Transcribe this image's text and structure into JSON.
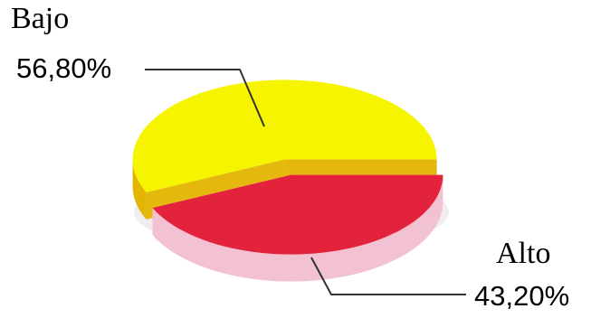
{
  "chart_data": {
    "type": "pie",
    "title": "",
    "slices": [
      {
        "label": "Bajo",
        "value": 56.8,
        "display": "56,80%",
        "color": "#f7f400",
        "side_color": "#e3b400"
      },
      {
        "label": "Alto",
        "value": 43.2,
        "display": "43,20%",
        "color": "#e3223c",
        "side_color": "#f2c2d2"
      }
    ],
    "style": "3d-exploded",
    "legend": "none"
  }
}
